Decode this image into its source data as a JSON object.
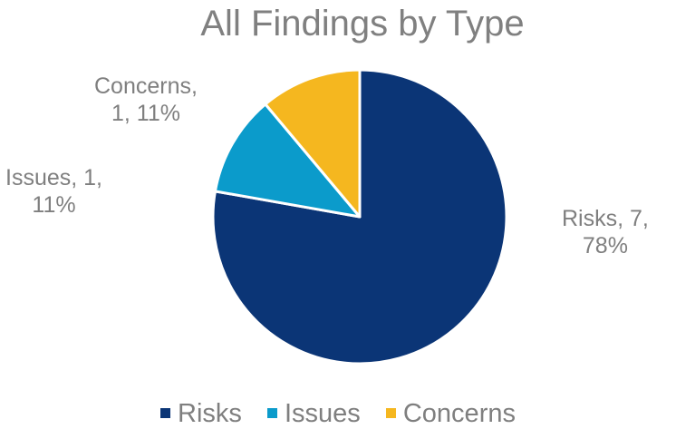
{
  "chart_data": {
    "type": "pie",
    "title": "All Findings by Type",
    "categories": [
      "Risks",
      "Issues",
      "Concerns"
    ],
    "values": [
      7,
      1,
      1
    ],
    "percentages": [
      78,
      11,
      11
    ],
    "colors": [
      "#0b3576",
      "#0b9bcb",
      "#f5b71f"
    ],
    "data_labels": [
      {
        "line1": "Risks, 7,",
        "line2": "78%"
      },
      {
        "line1": "Issues, 1,",
        "line2": "11%"
      },
      {
        "line1": "Concerns,",
        "line2": "1, 11%"
      }
    ],
    "legend_position": "bottom"
  }
}
